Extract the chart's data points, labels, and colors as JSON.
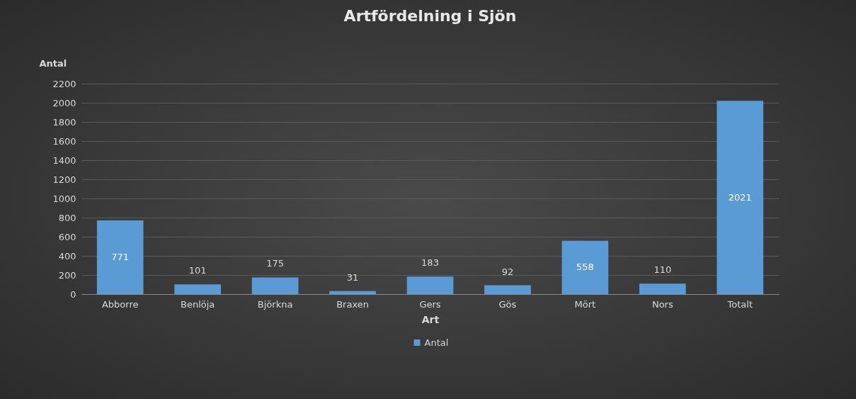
{
  "chart_data": {
    "type": "bar",
    "title": "Artfördelning i Sjön",
    "xlabel": "Art",
    "ylabel": "Antal",
    "categories": [
      "Abborre",
      "Benlöja",
      "Björkna",
      "Braxen",
      "Gers",
      "Gös",
      "Mört",
      "Nors",
      "Totalt"
    ],
    "series": [
      {
        "name": "Antal",
        "color": "#5b9bd5",
        "values": [
          771,
          101,
          175,
          31,
          183,
          92,
          558,
          110,
          2021
        ]
      }
    ],
    "ylim": [
      0,
      2200
    ],
    "yticks": [
      0,
      200,
      400,
      600,
      800,
      1000,
      1200,
      1400,
      1600,
      1800,
      2000,
      2200
    ],
    "grid": "y",
    "legend": "bottom",
    "data_labels": true
  }
}
